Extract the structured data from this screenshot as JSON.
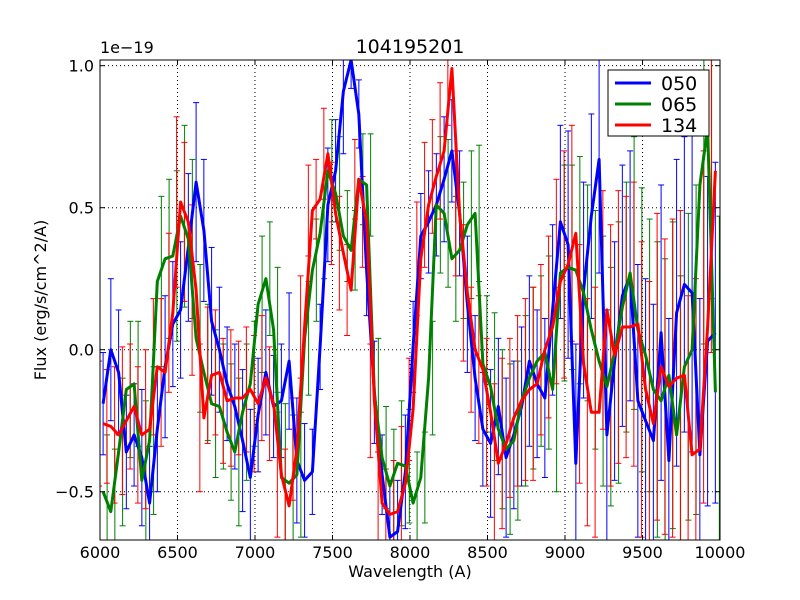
{
  "chart_data": {
    "type": "line",
    "title": "104195201",
    "xlabel": "Wavelength (A)",
    "ylabel": "Flux (erg/s/cm^2/A)",
    "y_scale_note": "1e−19",
    "xlim": [
      6000,
      10000
    ],
    "ylim": [
      -0.67,
      1.02
    ],
    "xticks": [
      6000,
      6500,
      7000,
      7500,
      8000,
      8500,
      9000,
      9500,
      10000
    ],
    "xtick_labels": [
      "6000",
      "6500",
      "7000",
      "7500",
      "8000",
      "8500",
      "9000",
      "9500",
      "10000"
    ],
    "yticks": [
      -0.5,
      0.0,
      0.5,
      1.0
    ],
    "ytick_labels": [
      "−0.5",
      "0.0",
      "0.5",
      "1.0"
    ],
    "grid": true,
    "legend_position": "top-right",
    "x": [
      6020,
      6070,
      6120,
      6170,
      6220,
      6270,
      6320,
      6370,
      6420,
      6470,
      6520,
      6570,
      6620,
      6670,
      6720,
      6770,
      6820,
      6870,
      6920,
      6970,
      7020,
      7070,
      7120,
      7170,
      7220,
      7270,
      7320,
      7370,
      7420,
      7470,
      7520,
      7570,
      7620,
      7670,
      7720,
      7770,
      7820,
      7870,
      7920,
      7970,
      8020,
      8070,
      8120,
      8170,
      8220,
      8270,
      8320,
      8370,
      8420,
      8470,
      8520,
      8570,
      8620,
      8670,
      8720,
      8770,
      8820,
      8870,
      8920,
      8970,
      9020,
      9070,
      9120,
      9170,
      9220,
      9270,
      9320,
      9370,
      9420,
      9470,
      9520,
      9570,
      9620,
      9670,
      9720,
      9770,
      9820,
      9870,
      9920,
      9970
    ],
    "series": [
      {
        "name": "050",
        "color": "#0000ff",
        "values": [
          -0.19,
          0.0,
          -0.08,
          -0.36,
          -0.3,
          -0.38,
          -0.54,
          -0.28,
          -0.06,
          0.09,
          0.14,
          0.36,
          0.59,
          0.42,
          0.1,
          0.0,
          -0.12,
          -0.2,
          -0.32,
          -0.45,
          -0.23,
          -0.08,
          -0.2,
          -0.18,
          -0.04,
          -0.39,
          -0.46,
          -0.43,
          0.01,
          0.51,
          0.63,
          0.91,
          1.02,
          0.83,
          0.28,
          -0.15,
          -0.44,
          -0.66,
          -0.64,
          -0.43,
          0.01,
          0.4,
          0.45,
          0.51,
          0.6,
          0.7,
          0.48,
          0.16,
          -0.1,
          -0.28,
          -0.33,
          -0.2,
          -0.38,
          -0.3,
          -0.2,
          -0.04,
          -0.12,
          -0.17,
          0.14,
          0.45,
          0.37,
          -0.4,
          0.21,
          0.47,
          0.67,
          -0.3,
          -0.04,
          0.19,
          0.26,
          -0.18,
          -0.25,
          -0.32,
          0.06,
          -0.39,
          0.13,
          0.23,
          0.2,
          -0.37,
          0.03,
          0.06
        ]
      },
      {
        "name": "065",
        "color": "#008000",
        "values": [
          -0.5,
          -0.57,
          -0.36,
          -0.14,
          -0.12,
          -0.46,
          -0.32,
          0.24,
          0.32,
          0.33,
          0.47,
          0.39,
          0.04,
          -0.08,
          -0.19,
          -0.2,
          -0.29,
          -0.36,
          -0.22,
          -0.12,
          0.16,
          0.25,
          0.07,
          -0.45,
          -0.47,
          -0.44,
          0.04,
          0.28,
          0.41,
          0.63,
          0.55,
          0.4,
          0.35,
          0.6,
          0.58,
          -0.16,
          -0.38,
          -0.48,
          -0.4,
          -0.41,
          -0.54,
          -0.45,
          -0.1,
          0.51,
          0.48,
          0.32,
          0.35,
          0.44,
          0.48,
          -0.05,
          -0.13,
          -0.28,
          -0.35,
          -0.32,
          -0.18,
          -0.1,
          -0.04,
          -0.01,
          -0.14,
          0.27,
          0.29,
          0.28,
          0.2,
          0.07,
          -0.04,
          -0.13,
          -0.01,
          0.15,
          0.27,
          0.07,
          -0.02,
          -0.14,
          -0.18,
          -0.09,
          -0.3,
          -0.06,
          0.0,
          0.58,
          0.78,
          -0.15
        ]
      },
      {
        "name": "134",
        "color": "#ff0000",
        "values": [
          -0.26,
          -0.27,
          -0.3,
          -0.25,
          -0.2,
          -0.3,
          -0.28,
          -0.06,
          -0.08,
          0.13,
          0.52,
          0.45,
          0.21,
          -0.24,
          -0.09,
          -0.08,
          -0.18,
          -0.17,
          -0.17,
          -0.14,
          -0.19,
          -0.1,
          -0.19,
          -0.44,
          -0.55,
          -0.35,
          0.08,
          0.49,
          0.53,
          0.69,
          0.48,
          0.34,
          0.21,
          0.6,
          0.45,
          -0.18,
          -0.54,
          -0.58,
          -0.57,
          -0.47,
          -0.21,
          0.32,
          0.51,
          0.61,
          0.7,
          0.99,
          0.48,
          0.2,
          0.0,
          -0.07,
          -0.22,
          -0.4,
          -0.33,
          -0.24,
          -0.18,
          -0.14,
          -0.12,
          0.0,
          0.08,
          0.24,
          0.3,
          0.41,
          -0.05,
          -0.22,
          -0.22,
          0.14,
          -0.02,
          0.08,
          0.08,
          0.09,
          -0.14,
          -0.26,
          -0.06,
          -0.13,
          -0.1,
          -0.09,
          -0.37,
          -0.35,
          0.08,
          0.63
        ]
      }
    ],
    "error_halfwidth": {
      "050": [
        0.18,
        0.25,
        0.22,
        0.2,
        0.18,
        0.24,
        0.2,
        0.22,
        0.25,
        0.22,
        0.24,
        0.26,
        0.28,
        0.25,
        0.26,
        0.22,
        0.2,
        0.22,
        0.25,
        0.24,
        0.2,
        0.22,
        0.18,
        0.2,
        0.24,
        0.22,
        0.2,
        0.15,
        0.15,
        0.2,
        0.18,
        0.22,
        0.1,
        0.12,
        0.16,
        0.18,
        0.14,
        0.2,
        0.18,
        0.2,
        0.16,
        0.15,
        0.18,
        0.18,
        0.22,
        0.18,
        0.22,
        0.24,
        0.22,
        0.2,
        0.26,
        0.24,
        0.28,
        0.26,
        0.28,
        0.3,
        0.26,
        0.28,
        0.3,
        0.34,
        0.4,
        0.42,
        0.38,
        0.36,
        0.4,
        0.44,
        0.42,
        0.46,
        0.44,
        0.48,
        0.5,
        0.48,
        0.52,
        0.5,
        0.54,
        0.52,
        0.56,
        0.55,
        0.58,
        0.6
      ],
      "065": [
        0.2,
        0.22,
        0.26,
        0.24,
        0.22,
        0.28,
        0.26,
        0.3,
        0.28,
        0.3,
        0.32,
        0.28,
        0.26,
        0.24,
        0.26,
        0.22,
        0.24,
        0.26,
        0.24,
        0.22,
        0.24,
        0.2,
        0.22,
        0.26,
        0.24,
        0.22,
        0.2,
        0.18,
        0.16,
        0.18,
        0.2,
        0.16,
        0.14,
        0.16,
        0.18,
        0.2,
        0.18,
        0.2,
        0.22,
        0.2,
        0.18,
        0.16,
        0.2,
        0.24,
        0.26,
        0.22,
        0.24,
        0.26,
        0.24,
        0.24,
        0.26,
        0.28,
        0.3,
        0.28,
        0.3,
        0.32,
        0.3,
        0.34,
        0.36,
        0.38,
        0.36,
        0.4,
        0.38,
        0.42,
        0.44,
        0.42,
        0.46,
        0.44,
        0.48,
        0.5,
        0.48,
        0.52,
        0.5,
        0.54,
        0.56,
        0.54,
        0.58,
        0.56,
        0.6,
        0.62
      ],
      "134": [
        0.22,
        0.2,
        0.24,
        0.26,
        0.22,
        0.24,
        0.28,
        0.24,
        0.26,
        0.28,
        0.3,
        0.28,
        0.3,
        0.26,
        0.24,
        0.22,
        0.22,
        0.24,
        0.2,
        0.22,
        0.24,
        0.22,
        0.2,
        0.22,
        0.2,
        0.18,
        0.18,
        0.16,
        0.14,
        0.16,
        0.18,
        0.2,
        0.16,
        0.14,
        0.16,
        0.2,
        0.18,
        0.16,
        0.18,
        0.2,
        0.18,
        0.2,
        0.22,
        0.2,
        0.24,
        0.2,
        0.22,
        0.24,
        0.22,
        0.26,
        0.26,
        0.28,
        0.3,
        0.28,
        0.3,
        0.32,
        0.34,
        0.3,
        0.32,
        0.36,
        0.4,
        0.38,
        0.42,
        0.4,
        0.44,
        0.42,
        0.46,
        0.48,
        0.46,
        0.5,
        0.52,
        0.5,
        0.54,
        0.52,
        0.56,
        0.58,
        0.56,
        0.6,
        0.62,
        0.64
      ]
    }
  }
}
